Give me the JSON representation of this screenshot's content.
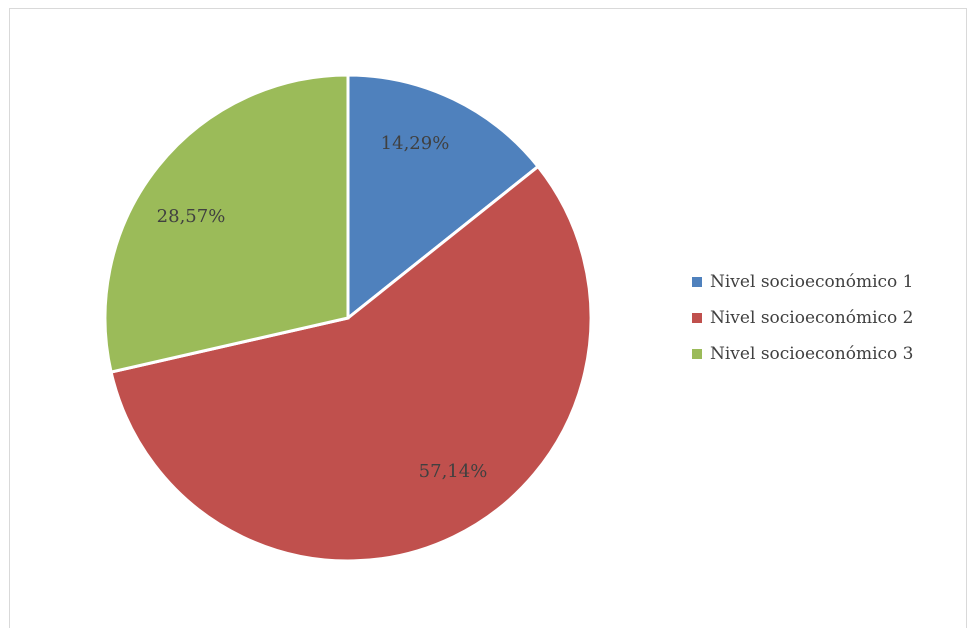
{
  "chart_data": {
    "type": "pie",
    "categories": [
      "Nivel socioeconómico 1",
      "Nivel socioeconómico 2",
      "Nivel socioeconómico 3"
    ],
    "values": [
      14.29,
      57.14,
      28.57
    ],
    "data_labels": [
      "14,29%",
      "57,14%",
      "28,57%"
    ],
    "colors": [
      "#4f81bd",
      "#c0504d",
      "#9bbb59"
    ],
    "legend_position": "right"
  }
}
